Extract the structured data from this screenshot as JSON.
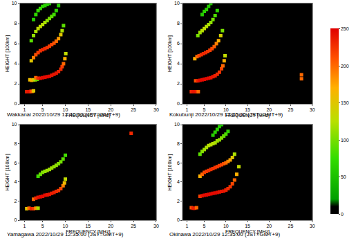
{
  "chart_data": [
    {
      "type": "scatter",
      "title": "Wakkanai 2022/10/29 12:40:00 (JST=GMT+9)",
      "x_label": "FREQUENCY [MHz]",
      "y_label": "HEIGHT [100km]",
      "xlim": [
        0,
        30
      ],
      "xticks": [
        1,
        5,
        10,
        15,
        20,
        25,
        30
      ],
      "ylim": [
        0,
        10
      ],
      "yticks": [
        0,
        2,
        4,
        6,
        8,
        10
      ],
      "series": [
        {
          "x": [
            1.5,
            1.8,
            2.1,
            2.4,
            2.7,
            3.0
          ],
          "y": [
            1.2,
            1.2,
            1.2,
            1.25,
            1.25,
            1.3
          ],
          "intensity": [
            230,
            240,
            240,
            230,
            200,
            150
          ]
        },
        {
          "x": [
            2.2,
            2.6,
            3.0,
            3.4,
            3.8
          ],
          "y": [
            2.4,
            2.35,
            2.4,
            2.4,
            2.45
          ],
          "intensity": [
            160,
            170,
            150,
            120,
            90
          ]
        },
        {
          "x": [
            3.5,
            4,
            4.5,
            5,
            5.5,
            6,
            6.5,
            7,
            7.5,
            8,
            8.5,
            9,
            9.3,
            9.6,
            9.9,
            10.1
          ],
          "y": [
            2.6,
            2.55,
            2.55,
            2.6,
            2.65,
            2.7,
            2.75,
            2.85,
            2.95,
            3.05,
            3.2,
            3.45,
            3.7,
            4.0,
            4.5,
            5.0
          ],
          "intensity": [
            200,
            230,
            240,
            245,
            245,
            245,
            245,
            240,
            240,
            240,
            235,
            230,
            220,
            200,
            170,
            130
          ]
        },
        {
          "x": [
            2.5,
            3,
            3.5,
            4,
            4.5,
            5,
            5.5,
            6,
            6.5,
            7,
            7.5,
            8,
            8.5,
            9,
            9.3,
            9.6
          ],
          "y": [
            4.3,
            4.6,
            4.9,
            5.1,
            5.3,
            5.4,
            5.5,
            5.6,
            5.75,
            5.9,
            6.05,
            6.25,
            6.5,
            6.9,
            7.3,
            7.8
          ],
          "intensity": [
            150,
            190,
            210,
            220,
            225,
            230,
            230,
            225,
            220,
            215,
            210,
            200,
            180,
            150,
            120,
            90
          ]
        },
        {
          "x": [
            2.5,
            3,
            3.5,
            4,
            4.5,
            5,
            5.5,
            6,
            6.5,
            7,
            7.5,
            8,
            8.5
          ],
          "y": [
            6.3,
            6.8,
            7.2,
            7.5,
            7.7,
            7.9,
            8.1,
            8.3,
            8.5,
            8.7,
            8.9,
            9.3,
            9.8
          ],
          "intensity": [
            90,
            110,
            120,
            130,
            130,
            125,
            120,
            110,
            100,
            90,
            80,
            70,
            60
          ]
        },
        {
          "x": [
            3,
            3.5,
            4,
            4.5,
            5,
            5.5,
            6,
            6.5
          ],
          "y": [
            8.4,
            8.9,
            9.3,
            9.5,
            9.7,
            9.8,
            9.9,
            10
          ],
          "intensity": [
            60,
            70,
            75,
            75,
            70,
            65,
            60,
            55
          ]
        }
      ]
    },
    {
      "type": "scatter",
      "title": "Kokubunji 2022/10/29 12:35:00 (JST=GMT+9)",
      "x_label": "FREQUENCY [MHz]",
      "y_label": "HEIGHT [100km]",
      "xlim": [
        0,
        30
      ],
      "xticks": [
        1,
        5,
        10,
        15,
        20,
        25,
        30
      ],
      "ylim": [
        0,
        10
      ],
      "yticks": [
        0,
        2,
        4,
        6,
        8,
        10
      ],
      "series": [
        {
          "x": [
            2.0,
            2.4,
            2.8,
            3.2,
            3.6
          ],
          "y": [
            1.2,
            1.2,
            1.2,
            1.2,
            1.2
          ],
          "intensity": [
            230,
            240,
            240,
            235,
            200
          ]
        },
        {
          "x": [
            3,
            3.5,
            4,
            4.5,
            5,
            5.5,
            6,
            6.5,
            7,
            7.5,
            8,
            8.5,
            9,
            9.3,
            9.6,
            9.8
          ],
          "y": [
            2.3,
            2.3,
            2.35,
            2.4,
            2.45,
            2.5,
            2.55,
            2.6,
            2.7,
            2.8,
            2.95,
            3.15,
            3.5,
            3.8,
            4.3,
            4.8
          ],
          "intensity": [
            210,
            235,
            245,
            245,
            245,
            245,
            245,
            240,
            240,
            235,
            230,
            225,
            215,
            200,
            170,
            130
          ]
        },
        {
          "x": [
            2.8,
            3.3,
            3.8,
            4.3,
            4.8,
            5.3,
            5.8,
            6.3,
            6.8,
            7.3,
            7.8,
            8.3,
            8.8,
            9.2
          ],
          "y": [
            4.5,
            4.7,
            4.8,
            4.9,
            5.0,
            5.1,
            5.2,
            5.35,
            5.5,
            5.7,
            6.0,
            6.3,
            6.8,
            7.3
          ],
          "intensity": [
            170,
            200,
            215,
            225,
            230,
            230,
            225,
            220,
            215,
            205,
            190,
            170,
            140,
            100
          ]
        },
        {
          "x": [
            3.5,
            4,
            4.5,
            5,
            5.5,
            6,
            6.5,
            7,
            7.5,
            8
          ],
          "y": [
            6.8,
            7.1,
            7.3,
            7.5,
            7.7,
            7.9,
            8.1,
            8.4,
            8.8,
            9.3
          ],
          "intensity": [
            100,
            115,
            125,
            130,
            125,
            120,
            110,
            100,
            85,
            70
          ]
        },
        {
          "x": [
            4.5,
            5,
            5.5,
            6,
            6.5
          ],
          "y": [
            8.9,
            9.2,
            9.4,
            9.7,
            10
          ],
          "intensity": [
            60,
            65,
            65,
            60,
            55
          ]
        },
        {
          "x": [
            27.5,
            27.5
          ],
          "y": [
            2.5,
            2.9
          ],
          "intensity": [
            200,
            200
          ]
        }
      ]
    },
    {
      "type": "scatter",
      "title": "Yamagawa 2022/10/29 12:35:00 (JST=GMT+9)",
      "x_label": "FREQUENCY [MHz]",
      "y_label": "HEIGHT [100km]",
      "xlim": [
        0,
        30
      ],
      "xticks": [
        1,
        5,
        10,
        15,
        20,
        25,
        30
      ],
      "ylim": [
        0,
        10
      ],
      "yticks": [
        0,
        2,
        4,
        6,
        8,
        10
      ],
      "series": [
        {
          "x": [
            1.5,
            2,
            2.5,
            3,
            3.5,
            4
          ],
          "y": [
            1.2,
            1.25,
            1.2,
            1.2,
            1.25,
            1.25
          ],
          "intensity": [
            150,
            200,
            230,
            220,
            180,
            120
          ]
        },
        {
          "x": [
            3,
            3.5,
            4,
            4.5,
            5,
            5.5,
            6,
            6.5,
            7,
            7.5,
            8,
            8.5,
            9,
            9.5,
            9.8,
            10
          ],
          "y": [
            2.2,
            2.3,
            2.4,
            2.45,
            2.5,
            2.6,
            2.65,
            2.7,
            2.8,
            2.9,
            3.0,
            3.1,
            3.3,
            3.6,
            3.9,
            4.3
          ],
          "intensity": [
            200,
            230,
            240,
            245,
            245,
            245,
            240,
            240,
            235,
            235,
            230,
            225,
            215,
            190,
            160,
            130
          ]
        },
        {
          "x": [
            4,
            4.5,
            5,
            5.5,
            6,
            6.5,
            7,
            7.5,
            8,
            8.5,
            9,
            9.5,
            10
          ],
          "y": [
            4.6,
            4.8,
            5.0,
            5.1,
            5.2,
            5.3,
            5.45,
            5.6,
            5.75,
            5.9,
            6.1,
            6.4,
            6.8
          ],
          "intensity": [
            80,
            95,
            105,
            110,
            115,
            115,
            115,
            110,
            110,
            105,
            100,
            90,
            80
          ]
        },
        {
          "x": [
            24.5
          ],
          "y": [
            9.1
          ],
          "intensity": [
            230
          ]
        }
      ]
    },
    {
      "type": "scatter",
      "title": "Okinawa 2022/10/29 12:35:00 (JST=GMT+9)",
      "x_label": "FREQUENCY [MHz]",
      "y_label": "HEIGHT [100km]",
      "xlim": [
        0,
        30
      ],
      "xticks": [
        1,
        5,
        10,
        15,
        20,
        25,
        30
      ],
      "ylim": [
        0,
        10
      ],
      "yticks": [
        0,
        2,
        4,
        6,
        8,
        10
      ],
      "series": [
        {
          "x": [
            2,
            2.4,
            2.8,
            3.2
          ],
          "y": [
            1.3,
            1.25,
            1.25,
            1.3
          ],
          "intensity": [
            210,
            235,
            235,
            200
          ]
        },
        {
          "x": [
            4,
            4.5,
            5,
            5.5,
            6,
            6.5,
            7,
            7.5,
            8,
            8.5,
            9,
            9.5,
            10,
            10.5,
            11,
            11.5,
            12,
            12.5,
            13
          ],
          "y": [
            2.5,
            2.55,
            2.6,
            2.65,
            2.7,
            2.75,
            2.8,
            2.85,
            2.9,
            2.95,
            3.0,
            3.05,
            3.15,
            3.3,
            3.5,
            3.8,
            4.2,
            4.8,
            5.6
          ],
          "intensity": [
            220,
            240,
            245,
            245,
            245,
            245,
            245,
            245,
            245,
            240,
            240,
            240,
            235,
            230,
            225,
            215,
            200,
            170,
            130
          ]
        },
        {
          "x": [
            4,
            4.5,
            5,
            5.5,
            6,
            6.5,
            7,
            7.5,
            8,
            8.5,
            9,
            9.5,
            10,
            10.5,
            11,
            11.5,
            12
          ],
          "y": [
            4.6,
            4.8,
            5.0,
            5.1,
            5.2,
            5.3,
            5.4,
            5.5,
            5.6,
            5.7,
            5.8,
            5.9,
            6.0,
            6.15,
            6.3,
            6.55,
            6.9
          ],
          "intensity": [
            170,
            200,
            215,
            220,
            225,
            225,
            225,
            225,
            220,
            220,
            215,
            210,
            200,
            190,
            175,
            150,
            120
          ]
        },
        {
          "x": [
            4,
            4.5,
            5,
            5.5,
            6,
            6.5,
            7,
            7.5,
            8,
            8.5,
            9,
            9.5,
            10,
            10.5
          ],
          "y": [
            6.9,
            7.2,
            7.4,
            7.6,
            7.8,
            7.9,
            8.0,
            8.1,
            8.3,
            8.4,
            8.6,
            8.8,
            9.0,
            9.3
          ],
          "intensity": [
            90,
            105,
            115,
            120,
            125,
            125,
            125,
            120,
            115,
            110,
            105,
            95,
            85,
            70
          ]
        },
        {
          "x": [
            7,
            7.5,
            8,
            8.5,
            9
          ],
          "y": [
            8.9,
            9.2,
            9.5,
            9.8,
            10
          ],
          "intensity": [
            60,
            65,
            65,
            60,
            55
          ]
        }
      ]
    }
  ],
  "colorbar": {
    "range": [
      0,
      250
    ],
    "ticks": [
      0,
      50,
      100,
      150,
      200,
      250
    ]
  }
}
